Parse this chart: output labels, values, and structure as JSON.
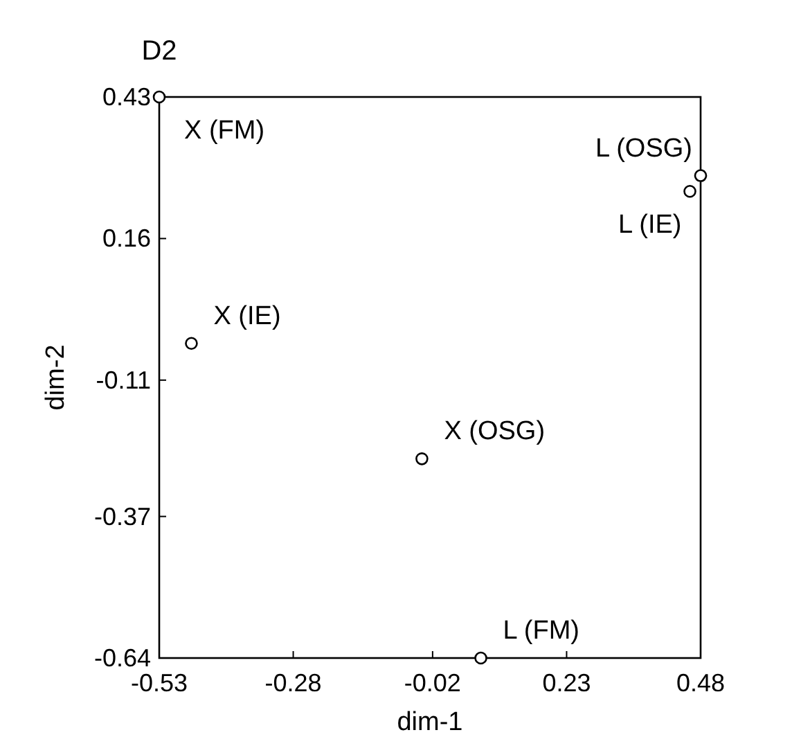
{
  "chart_data": {
    "type": "scatter",
    "title": "D2",
    "xlabel": "dim-1",
    "ylabel": "dim-2",
    "x": [
      -0.53,
      0.48,
      0.46,
      -0.47,
      -0.04,
      0.07
    ],
    "values": [
      0.43,
      0.28,
      0.25,
      -0.04,
      -0.26,
      -0.64
    ],
    "color": "#000000",
    "marker": "circle",
    "grid": false,
    "xlim": [
      -0.53,
      0.48
    ],
    "xticks": [
      -0.53,
      -0.28,
      -0.02,
      0.23,
      0.48
    ],
    "ylim": [
      -0.64,
      0.43
    ],
    "yticks": [
      0.43,
      0.16,
      -0.11,
      -0.37,
      -0.64
    ],
    "annotations": [
      {
        "text": "X (FM)",
        "x": -0.53,
        "y": 0.43
      },
      {
        "text": "L (OSG)",
        "x": 0.48,
        "y": 0.28
      },
      {
        "text": "L (IE)",
        "x": 0.46,
        "y": 0.25
      },
      {
        "text": "X (IE)",
        "x": -0.47,
        "y": -0.04
      },
      {
        "text": "X (OSG)",
        "x": -0.04,
        "y": -0.26
      },
      {
        "text": "L (FM)",
        "x": 0.07,
        "y": -0.64
      }
    ]
  }
}
